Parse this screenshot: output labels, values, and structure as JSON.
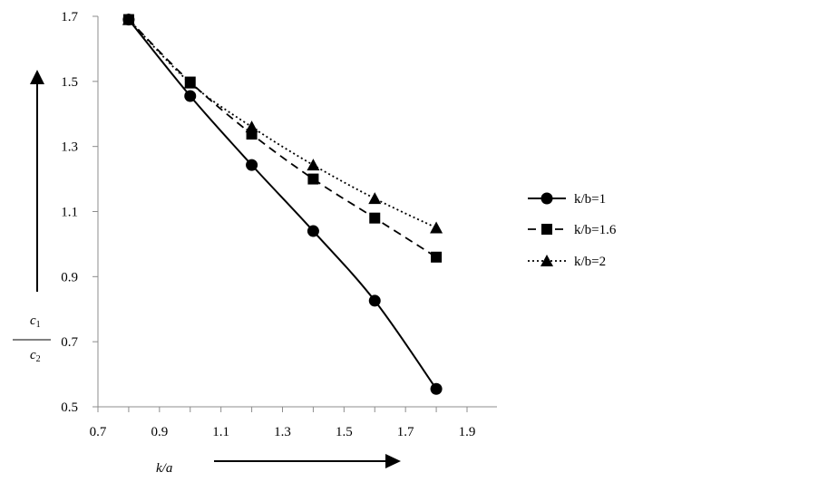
{
  "chart_data": {
    "type": "line",
    "xlabel": "k/a",
    "ylabel": {
      "numerator": "c",
      "numerator_sub": "1",
      "denominator": "c",
      "denominator_sub": "2"
    },
    "xlim": [
      0.7,
      1.9
    ],
    "ylim": [
      0.5,
      1.7
    ],
    "xticks": [
      "0.7",
      "0.9",
      "1.1",
      "1.3",
      "1.5",
      "1.7",
      "1.9"
    ],
    "yticks": [
      "0.5",
      "0.7",
      "0.9",
      "1.1",
      "1.3",
      "1.5",
      "1.7"
    ],
    "grid": false,
    "legend_position": "right",
    "series": [
      {
        "name": "k/b=1",
        "marker": "circle",
        "line": "solid",
        "color": "#000000",
        "x": [
          0.8,
          1.0,
          1.2,
          1.4,
          1.6,
          1.8
        ],
        "y": [
          1.69,
          1.455,
          1.243,
          1.04,
          0.826,
          0.555
        ]
      },
      {
        "name": "k/b=1.6",
        "marker": "square",
        "line": "dashed",
        "color": "#000000",
        "x": [
          0.8,
          1.0,
          1.2,
          1.4,
          1.6,
          1.8
        ],
        "y": [
          1.69,
          1.498,
          1.338,
          1.2,
          1.08,
          0.96
        ]
      },
      {
        "name": "k/b=2",
        "marker": "triangle",
        "line": "dotted",
        "color": "#000000",
        "x": [
          0.8,
          1.0,
          1.2,
          1.4,
          1.6,
          1.8
        ],
        "y": [
          1.69,
          1.495,
          1.36,
          1.243,
          1.14,
          1.05
        ]
      }
    ]
  }
}
